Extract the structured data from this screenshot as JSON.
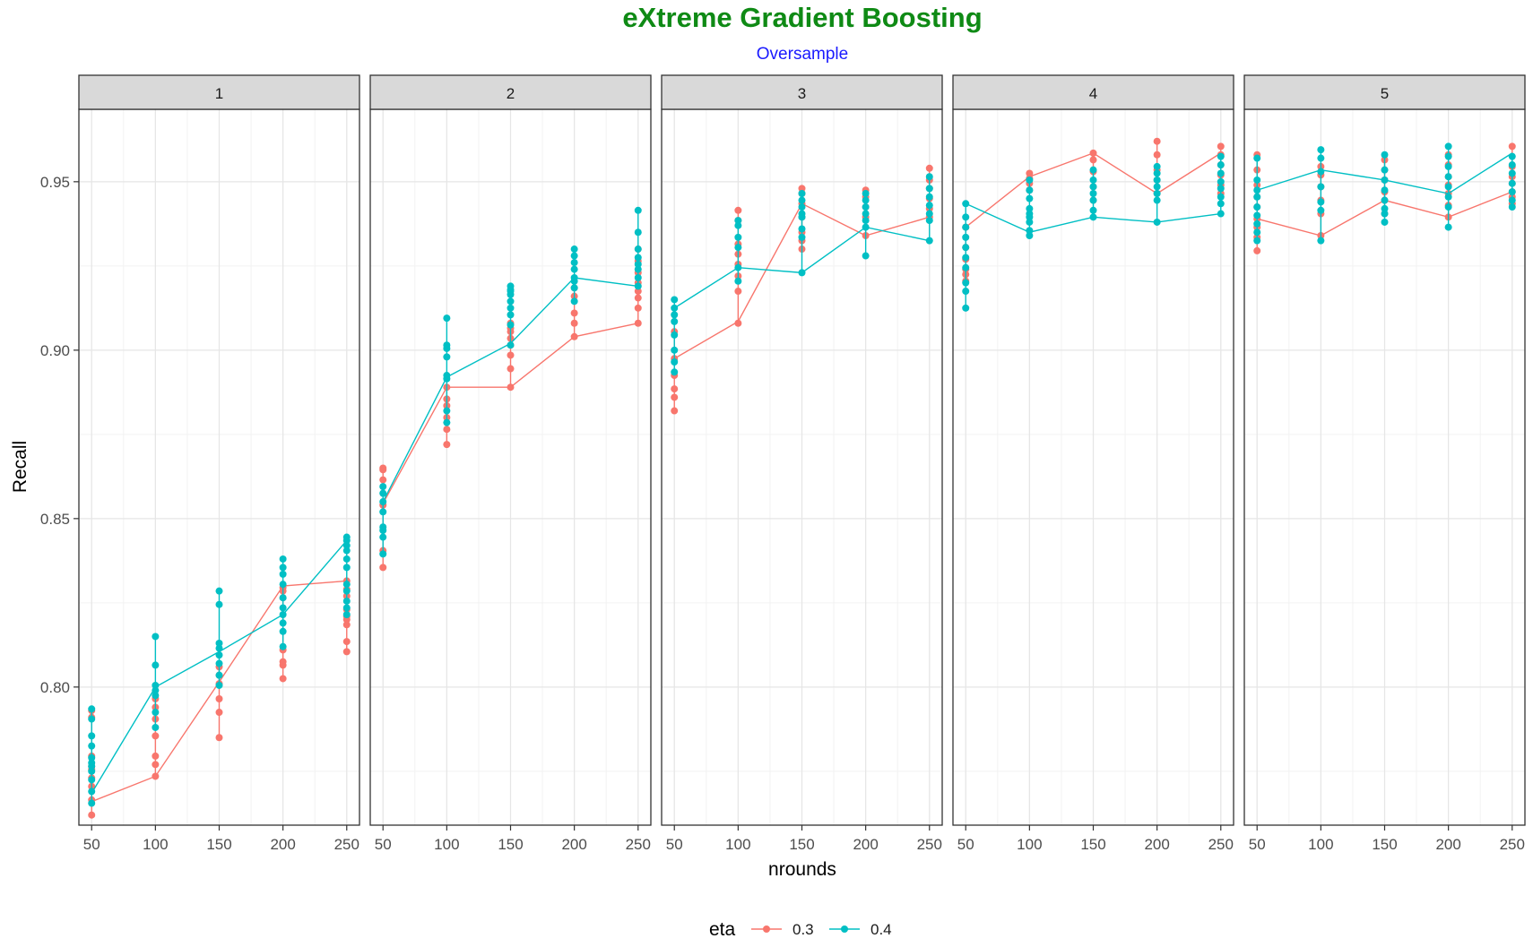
{
  "title": "eXtreme Gradient Boosting",
  "subtitle": "Oversample",
  "chart_data": {
    "type": "line",
    "title": "eXtreme Gradient Boosting",
    "subtitle": "Oversample",
    "xlabel": "nrounds",
    "ylabel": "Recall",
    "x_ticks": [
      50,
      100,
      150,
      200,
      250
    ],
    "y_ticks": [
      0.8,
      0.85,
      0.9,
      0.95
    ],
    "y_tick_labels": [
      "0.80",
      "0.85",
      "0.90",
      "0.95"
    ],
    "xlim": [
      40,
      260
    ],
    "ylim": [
      0.759,
      0.9715
    ],
    "grid": true,
    "legend": {
      "title": "eta",
      "position": "bottom",
      "entries": [
        "0.3",
        "0.4"
      ]
    },
    "colors": {
      "0.3": "#F8766D",
      "0.4": "#00BFC4"
    },
    "facets": [
      {
        "label": "1",
        "series": [
          {
            "name": "0.3",
            "color": "#F8766D",
            "line": [
              0.766,
              0.7735,
              0.8015,
              0.83,
              0.8315
            ],
            "points": [
              [
                0.762,
                0.7665,
                0.7705,
                0.773,
                0.7755,
                0.7765,
                0.7795,
                0.791,
                0.793
              ],
              [
                0.7735,
                0.777,
                0.7795,
                0.7855,
                0.7905,
                0.794,
                0.7965
              ],
              [
                0.785,
                0.7925,
                0.7965,
                0.801,
                0.8035,
                0.806
              ],
              [
                0.8025,
                0.8065,
                0.8075,
                0.811,
                0.8265,
                0.8285,
                0.8295
              ],
              [
                0.8105,
                0.8135,
                0.8185,
                0.82,
                0.821,
                0.823,
                0.827,
                0.829,
                0.8315
              ]
            ]
          },
          {
            "name": "0.4",
            "color": "#00BFC4",
            "line": [
              0.7685,
              0.8,
              0.8105,
              0.8215,
              0.8435
            ],
            "points": [
              [
                0.7655,
                0.769,
                0.7725,
                0.775,
                0.7765,
                0.7775,
                0.779,
                0.7825,
                0.7855,
                0.7905,
                0.7935
              ],
              [
                0.788,
                0.7925,
                0.7975,
                0.799,
                0.8005,
                0.8065,
                0.815
              ],
              [
                0.8005,
                0.8035,
                0.807,
                0.8095,
                0.8115,
                0.813,
                0.8245,
                0.8285
              ],
              [
                0.812,
                0.8165,
                0.819,
                0.8215,
                0.8235,
                0.8265,
                0.8305,
                0.8335,
                0.8355,
                0.838
              ],
              [
                0.8215,
                0.8235,
                0.8255,
                0.8285,
                0.8305,
                0.8355,
                0.838,
                0.8405,
                0.842,
                0.8435,
                0.8445
              ]
            ]
          }
        ]
      },
      {
        "label": "2",
        "series": [
          {
            "name": "0.3",
            "color": "#F8766D",
            "line": [
              0.8545,
              0.889,
              0.889,
              0.904,
              0.908
            ],
            "points": [
              [
                0.8355,
                0.8405,
                0.854,
                0.8615,
                0.8645,
                0.865
              ],
              [
                0.872,
                0.8765,
                0.88,
                0.8835,
                0.8855,
                0.889
              ],
              [
                0.889,
                0.8945,
                0.8985,
                0.9015,
                0.9035,
                0.9055,
                0.9065,
                0.908
              ],
              [
                0.904,
                0.908,
                0.911,
                0.916,
                0.9185
              ],
              [
                0.908,
                0.9125,
                0.9155,
                0.9175,
                0.92,
                0.923,
                0.9265,
                0.93
              ]
            ]
          },
          {
            "name": "0.4",
            "color": "#00BFC4",
            "line": [
              0.855,
              0.892,
              0.902,
              0.9215,
              0.919
            ],
            "points": [
              [
                0.8395,
                0.8445,
                0.8465,
                0.8475,
                0.852,
                0.855,
                0.8575,
                0.8595
              ],
              [
                0.8785,
                0.882,
                0.8915,
                0.8925,
                0.898,
                0.9005,
                0.9015,
                0.9095
              ],
              [
                0.9015,
                0.9075,
                0.9105,
                0.9125,
                0.9145,
                0.9165,
                0.9175,
                0.918,
                0.919
              ],
              [
                0.9145,
                0.9185,
                0.9205,
                0.9215,
                0.924,
                0.926,
                0.928,
                0.93
              ],
              [
                0.919,
                0.9215,
                0.924,
                0.9255,
                0.9275,
                0.93,
                0.935,
                0.9415
              ]
            ]
          }
        ]
      },
      {
        "label": "3",
        "series": [
          {
            "name": "0.3",
            "color": "#F8766D",
            "line": [
              0.8975,
              0.9085,
              0.9435,
              0.934,
              0.9395
            ],
            "points": [
              [
                0.882,
                0.886,
                0.8885,
                0.8925,
                0.8975,
                0.9055
              ],
              [
                0.908,
                0.9175,
                0.922,
                0.9255,
                0.9285,
                0.9315,
                0.9385,
                0.9415
              ],
              [
                0.93,
                0.9325,
                0.935,
                0.9395,
                0.9435,
                0.9465,
                0.948
              ],
              [
                0.934,
                0.9395,
                0.9425,
                0.9455,
                0.9475
              ],
              [
                0.9395,
                0.942,
                0.945,
                0.948,
                0.9505,
                0.954
              ]
            ]
          },
          {
            "name": "0.4",
            "color": "#00BFC4",
            "line": [
              0.9125,
              0.9245,
              0.923,
              0.9365,
              0.9325
            ],
            "points": [
              [
                0.8935,
                0.8965,
                0.9,
                0.9045,
                0.9085,
                0.9105,
                0.9125,
                0.915
              ],
              [
                0.9205,
                0.9245,
                0.9305,
                0.9335,
                0.937,
                0.9385
              ],
              [
                0.923,
                0.9335,
                0.936,
                0.9395,
                0.9405,
                0.9425,
                0.9445,
                0.9465
              ],
              [
                0.928,
                0.9365,
                0.9385,
                0.9405,
                0.9425,
                0.9445,
                0.9465
              ],
              [
                0.9325,
                0.9385,
                0.9405,
                0.943,
                0.9455,
                0.948,
                0.9515
              ]
            ]
          }
        ]
      },
      {
        "label": "4",
        "series": [
          {
            "name": "0.3",
            "color": "#F8766D",
            "line": [
              0.9365,
              0.9515,
              0.9585,
              0.9465,
              0.9585
            ],
            "points": [
              [
                0.9205,
                0.9225,
                0.924,
                0.927,
                0.9305,
                0.9365
              ],
              [
                0.9475,
                0.9495,
                0.951,
                0.9525
              ],
              [
                0.9445,
                0.9485,
                0.953,
                0.9565,
                0.9585
              ],
              [
                0.9465,
                0.9505,
                0.9535,
                0.958,
                0.962
              ],
              [
                0.9465,
                0.949,
                0.952,
                0.955,
                0.958,
                0.9605
              ]
            ]
          },
          {
            "name": "0.4",
            "color": "#00BFC4",
            "line": [
              0.9435,
              0.935,
              0.9395,
              0.938,
              0.9405
            ],
            "points": [
              [
                0.9125,
                0.9175,
                0.92,
                0.9245,
                0.9275,
                0.9305,
                0.9335,
                0.9365,
                0.9395,
                0.9435
              ],
              [
                0.934,
                0.9355,
                0.938,
                0.9395,
                0.9405,
                0.942,
                0.945,
                0.9475,
                0.9505
              ],
              [
                0.9395,
                0.9415,
                0.9445,
                0.9465,
                0.9485,
                0.9505,
                0.9535
              ],
              [
                0.938,
                0.9445,
                0.9465,
                0.9485,
                0.9505,
                0.9525,
                0.9545
              ],
              [
                0.9405,
                0.9435,
                0.9455,
                0.948,
                0.95,
                0.9525,
                0.955,
                0.9575
              ]
            ]
          }
        ]
      },
      {
        "label": "5",
        "series": [
          {
            "name": "0.3",
            "color": "#F8766D",
            "line": [
              0.939,
              0.934,
              0.9445,
              0.9395,
              0.947
            ],
            "points": [
              [
                0.9295,
                0.9335,
                0.9365,
                0.939,
                0.9425,
                0.9455,
                0.949,
                0.9535,
                0.958
              ],
              [
                0.934,
                0.9405,
                0.9445,
                0.9485,
                0.952,
                0.9545
              ],
              [
                0.9405,
                0.9445,
                0.947,
                0.9505,
                0.9535,
                0.9565
              ],
              [
                0.9395,
                0.943,
                0.9465,
                0.949,
                0.9515,
                0.955,
                0.958
              ],
              [
                0.9435,
                0.9455,
                0.947,
                0.9495,
                0.9515,
                0.9545,
                0.9605
              ]
            ]
          },
          {
            "name": "0.4",
            "color": "#00BFC4",
            "line": [
              0.9475,
              0.9535,
              0.9505,
              0.9465,
              0.9585
            ],
            "points": [
              [
                0.9325,
                0.935,
                0.9375,
                0.94,
                0.9425,
                0.9455,
                0.9475,
                0.9505,
                0.957
              ],
              [
                0.9325,
                0.9415,
                0.944,
                0.9485,
                0.953,
                0.957,
                0.9595
              ],
              [
                0.938,
                0.9405,
                0.942,
                0.9445,
                0.9475,
                0.9505,
                0.9535,
                0.958
              ],
              [
                0.9365,
                0.9425,
                0.9455,
                0.9485,
                0.9515,
                0.9545,
                0.9575,
                0.9605
              ],
              [
                0.9425,
                0.9445,
                0.947,
                0.9495,
                0.9525,
                0.955,
                0.9575
              ]
            ]
          }
        ]
      }
    ]
  }
}
